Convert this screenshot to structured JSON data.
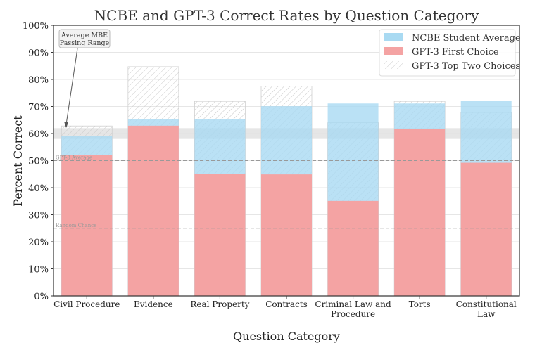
{
  "chart_data": {
    "type": "bar",
    "title": "NCBE and GPT-3 Correct Rates by Question Category",
    "xlabel": "Question Category",
    "ylabel": "Percent Correct",
    "ylim": [
      0,
      100
    ],
    "yticks": [
      "0%",
      "10%",
      "20%",
      "30%",
      "40%",
      "50%",
      "60%",
      "70%",
      "80%",
      "90%",
      "100%"
    ],
    "categories": [
      [
        "Civil Procedure"
      ],
      [
        "Evidence"
      ],
      [
        "Real Property"
      ],
      [
        "Contracts"
      ],
      [
        "Criminal Law and",
        "Procedure"
      ],
      [
        "Torts"
      ],
      [
        "Constitutional",
        "Law"
      ]
    ],
    "series": [
      {
        "name": "NCBE Student Average",
        "color": "#a9daf2",
        "values": [
          59.1,
          65.2,
          65.2,
          70.1,
          71.1,
          71.1,
          72.1
        ]
      },
      {
        "name": "GPT-3 First Choice",
        "color": "#f4a3a3",
        "values": [
          52.2,
          62.9,
          45.0,
          44.9,
          35.1,
          61.7,
          49.2
        ]
      },
      {
        "name": "GPT-3 Top Two Choices",
        "color": "#cccccc",
        "pattern": "hatch",
        "values": [
          62.8,
          84.7,
          71.9,
          77.5,
          64.0,
          71.9,
          67.8
        ]
      }
    ],
    "reference_lines": [
      {
        "label": "GPT-3 Average",
        "value": 50
      },
      {
        "label": "Random Chance",
        "value": 25
      }
    ],
    "passing_range": {
      "label": [
        "Average MBE",
        "Passing Range"
      ],
      "range": [
        58,
        62
      ]
    },
    "grid": true,
    "legend": "top-right"
  }
}
